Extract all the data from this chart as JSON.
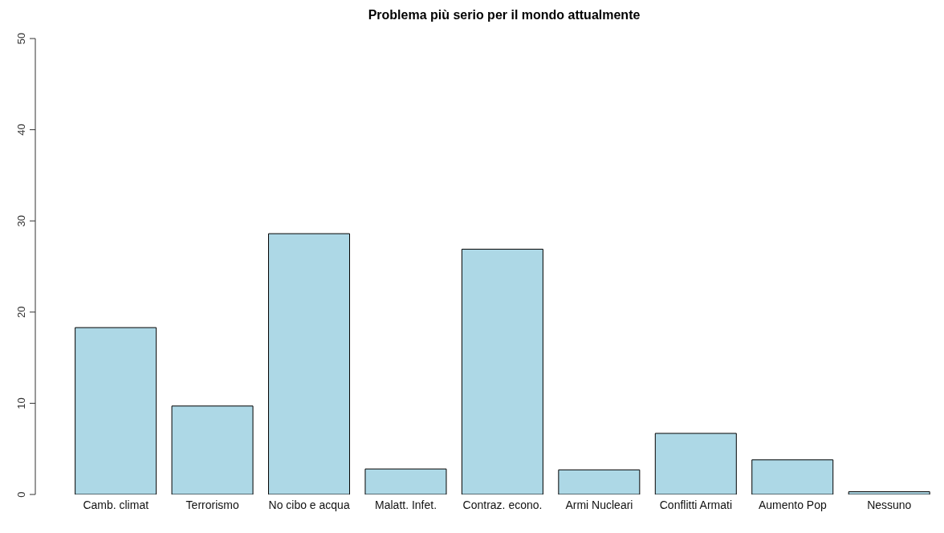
{
  "chart_data": {
    "type": "bar",
    "title": "Problema più serio per il mondo attualmente",
    "categories": [
      "Camb. climat",
      "Terrorismo",
      "No cibo e acqua",
      "Malatt. Infet.",
      "Contraz. econo.",
      "Armi Nucleari",
      "Conflitti Armati",
      "Aumento Pop",
      "Nessuno"
    ],
    "values": [
      18.3,
      9.7,
      28.6,
      2.8,
      26.9,
      2.7,
      6.7,
      3.8,
      0.3
    ],
    "color": "#add8e6",
    "ylim": [
      0,
      50
    ],
    "yticks": [
      0,
      10,
      20,
      30,
      40,
      50
    ]
  }
}
